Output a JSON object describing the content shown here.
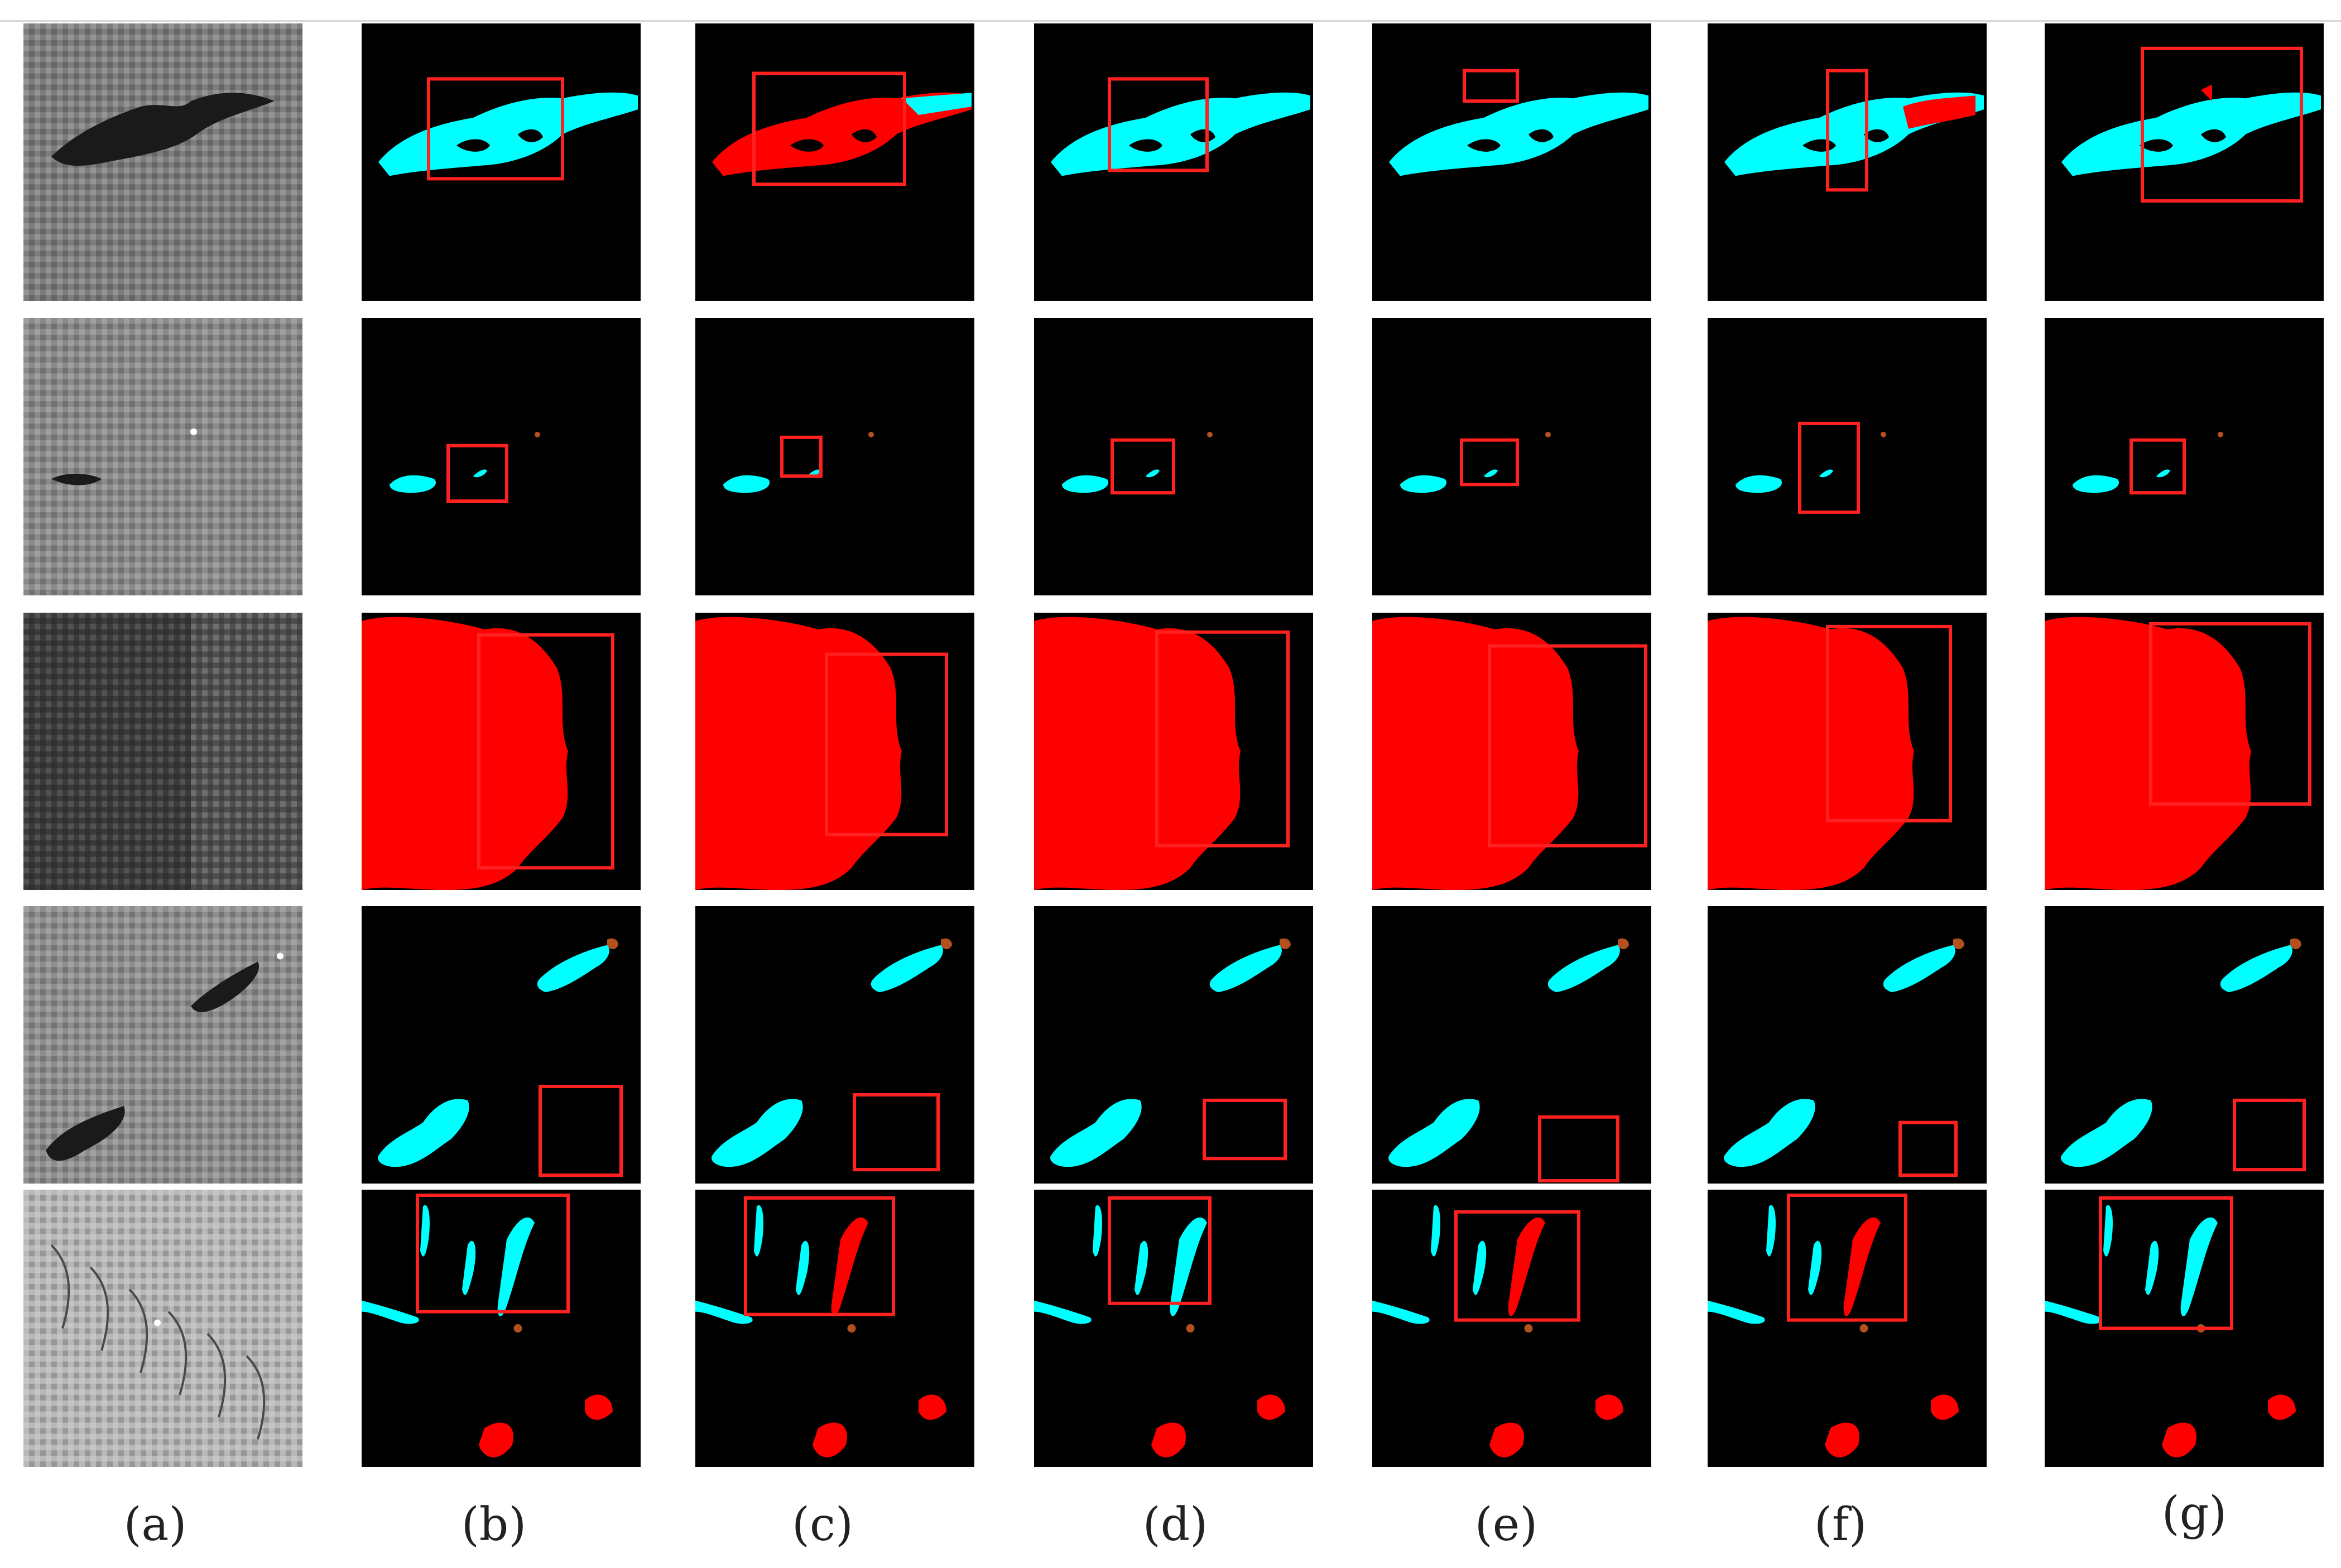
{
  "figure": {
    "column_labels": [
      "(a)",
      "(b)",
      "(c)",
      "(d)",
      "(e)",
      "(f)",
      "(g)"
    ],
    "rows": 5,
    "columns": 7,
    "legend_colors": {
      "oil_spill": "#00ffff",
      "look_alike": "#ff0000",
      "ship": "#b4501e",
      "sea_surface": "#000000",
      "highlight_box": "#ff2020"
    },
    "tile_types": [
      "sar-image",
      "segmentation-map",
      "segmentation-map",
      "segmentation-map",
      "segmentation-map",
      "segmentation-map",
      "segmentation-map"
    ]
  }
}
